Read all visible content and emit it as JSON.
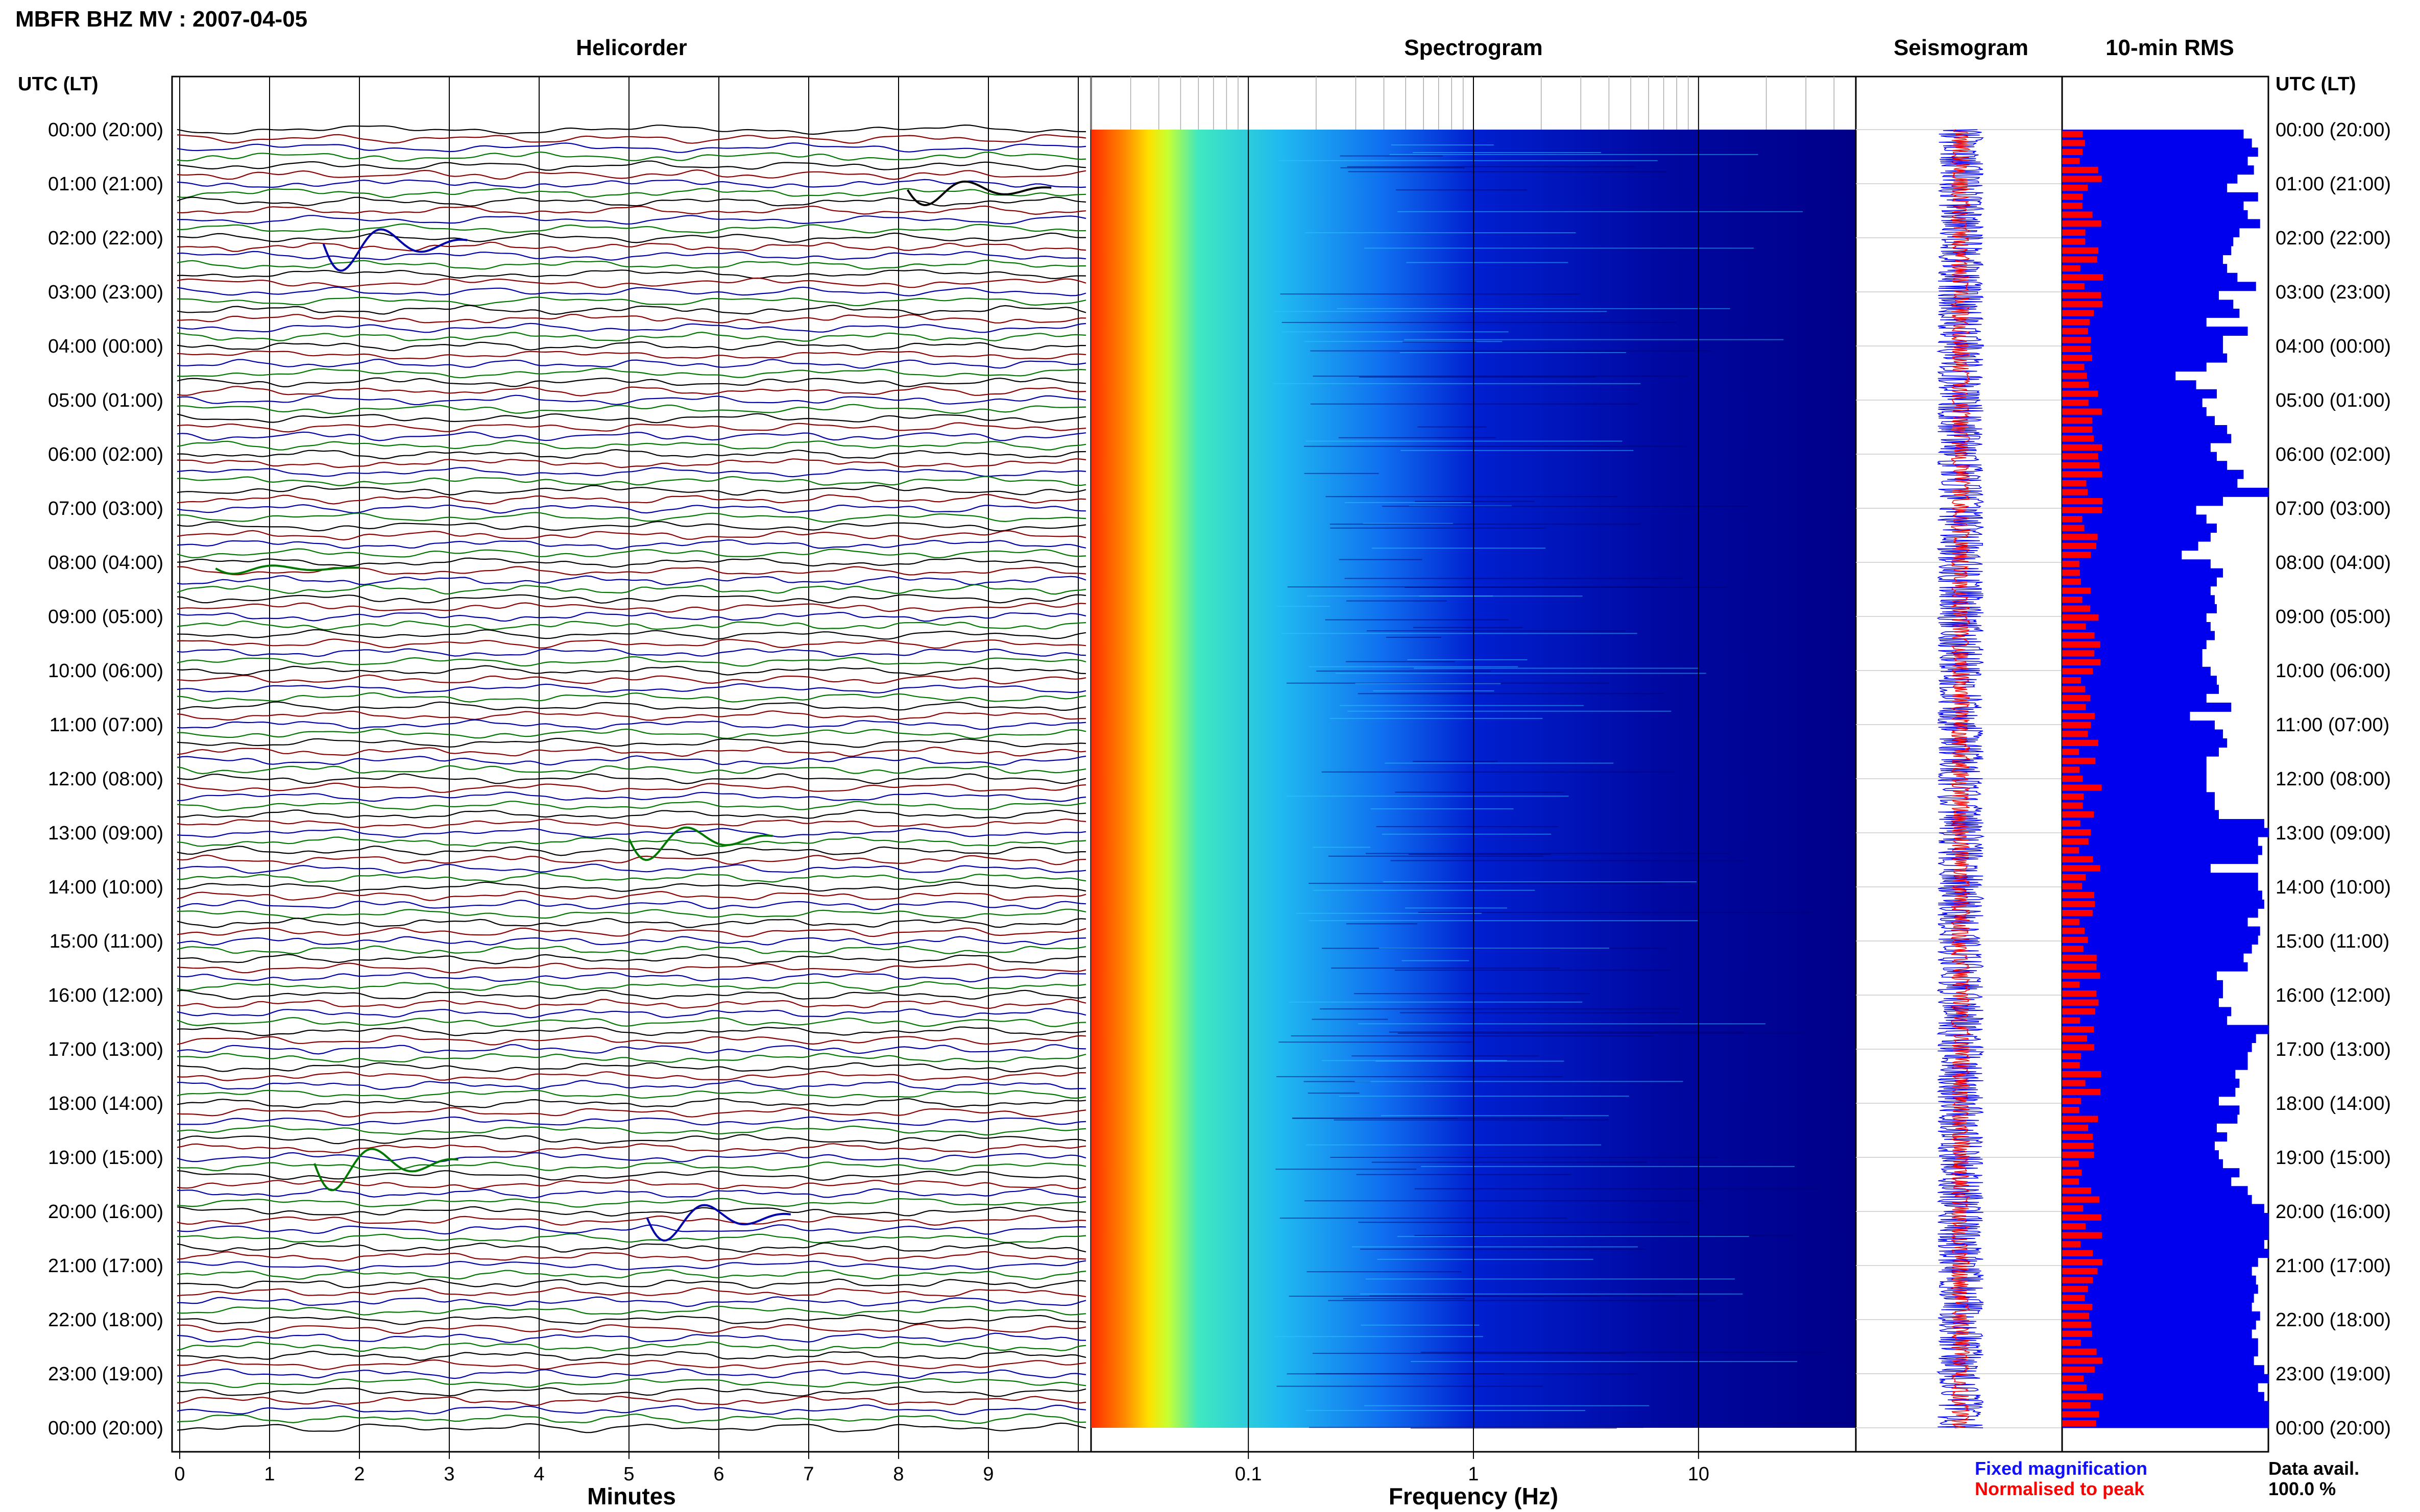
{
  "header": {
    "title": "MBFR BHZ MV : 2007-04-05",
    "utc_label": "UTC (LT)",
    "utc_label_right": "UTC (LT)"
  },
  "panels": {
    "helicorder": "Helicorder",
    "spectrogram": "Spectrogram",
    "seismogram": "Seismogram",
    "rms": "10-min RMS"
  },
  "footer": {
    "minutes_label": "Minutes",
    "frequency_label": "Frequency (Hz)",
    "legend_fixed": "Fixed magnification",
    "legend_norm": "Normalised to peak",
    "data_avail_label": "Data avail.",
    "data_avail_value": "100.0 %"
  },
  "colors": {
    "trace_cycle": [
      "#000000",
      "#8b0000",
      "#0000aa",
      "#007700"
    ],
    "fixed_mag": "#0000ff",
    "normalised": "#ff0000",
    "rms_fill": "#0000ee",
    "spec_low": "#00007f",
    "spec_high": "#ff0000"
  },
  "chart_data": {
    "type": "heatmap",
    "time_labels": [
      "00:00 (20:00)",
      "01:00 (21:00)",
      "02:00 (22:00)",
      "03:00 (23:00)",
      "04:00 (00:00)",
      "05:00 (01:00)",
      "06:00 (02:00)",
      "07:00 (03:00)",
      "08:00 (04:00)",
      "09:00 (05:00)",
      "10:00 (06:00)",
      "11:00 (07:00)",
      "12:00 (08:00)",
      "13:00 (09:00)",
      "14:00 (10:00)",
      "15:00 (11:00)",
      "16:00 (12:00)",
      "17:00 (13:00)",
      "18:00 (14:00)",
      "19:00 (15:00)",
      "20:00 (16:00)",
      "21:00 (17:00)",
      "22:00 (18:00)",
      "23:00 (19:00)",
      "00:00 (20:00)"
    ],
    "helicorder": {
      "x_ticks": [
        "0",
        "1",
        "2",
        "3",
        "4",
        "5",
        "6",
        "7",
        "8",
        "9"
      ],
      "xlabel": "Minutes",
      "xlim": [
        0,
        10
      ],
      "lines_per_hour": 6
    },
    "spectrogram": {
      "x_ticks": [
        "0.1",
        "1",
        "10"
      ],
      "xlabel": "Frequency (Hz)",
      "xlim": [
        0.02,
        50
      ],
      "log_x": true
    },
    "rms_levels": [
      0.88,
      0.92,
      0.95,
      0.9,
      0.93,
      0.85,
      0.8,
      0.95,
      0.88,
      0.9,
      0.96,
      0.86,
      0.83,
      0.82,
      0.78,
      0.8,
      0.85,
      0.94,
      0.76,
      0.83,
      0.86,
      0.7,
      0.9,
      0.78,
      0.78,
      0.8,
      0.7,
      0.55,
      0.65,
      0.75,
      0.68,
      0.7,
      0.74,
      0.8,
      0.82,
      0.72,
      0.75,
      0.8,
      0.88,
      0.85,
      1.0,
      0.78,
      0.65,
      0.7,
      0.75,
      0.72,
      0.66,
      0.58,
      0.72,
      0.78,
      0.75,
      0.72,
      0.74,
      0.75,
      0.7,
      0.72,
      0.74,
      0.7,
      0.68,
      0.68,
      0.72,
      0.75,
      0.76,
      0.7,
      0.82,
      0.62,
      0.74,
      0.78,
      0.8,
      0.76,
      0.7,
      0.7,
      0.7,
      0.7,
      0.74,
      0.74,
      0.76,
      0.98,
      1.0,
      0.95,
      0.97,
      0.95,
      0.72,
      0.95,
      0.95,
      0.97,
      0.98,
      0.95,
      0.9,
      0.96,
      0.95,
      0.92,
      0.88,
      0.9,
      0.75,
      0.78,
      0.78,
      0.76,
      0.82,
      0.8,
      1.0,
      0.94,
      0.92,
      0.9,
      0.9,
      0.84,
      0.86,
      0.84,
      0.76,
      0.86,
      0.85,
      0.75,
      0.8,
      0.74,
      0.76,
      0.78,
      0.86,
      0.82,
      0.9,
      0.92,
      0.98,
      1.0,
      1.0,
      1.0,
      0.98,
      1.0,
      0.95,
      0.92,
      0.94,
      0.95,
      0.93,
      0.92,
      0.96,
      0.94,
      0.92,
      0.95,
      0.95,
      0.93,
      0.98,
      1.0,
      0.95,
      0.98,
      1.0,
      1.0,
      1.0
    ]
  }
}
